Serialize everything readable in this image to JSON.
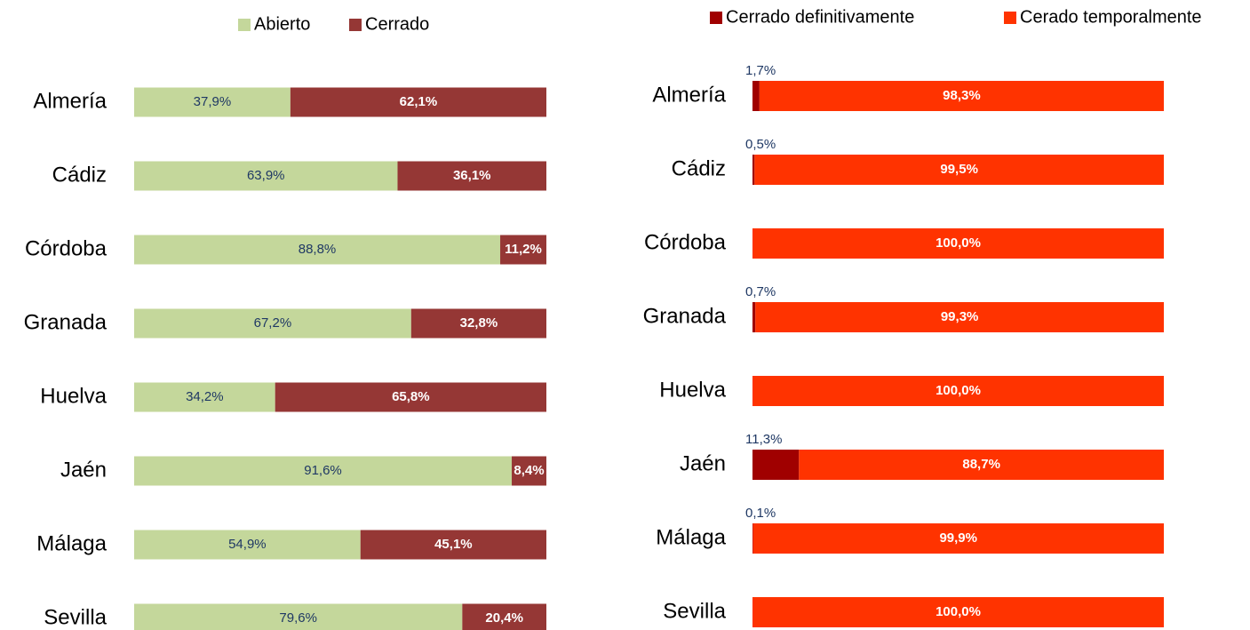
{
  "chart_data": [
    {
      "type": "bar",
      "stacked": true,
      "orientation": "horizontal",
      "legend": "top",
      "categories": [
        "Almería",
        "Cádiz",
        "Córdoba",
        "Granada",
        "Huelva",
        "Jaén",
        "Málaga",
        "Sevilla"
      ],
      "xlim": [
        0,
        100
      ],
      "series": [
        {
          "name": "Abierto",
          "color": "#c4d79b",
          "values": [
            37.9,
            63.9,
            88.8,
            67.2,
            34.2,
            91.6,
            54.9,
            79.6
          ],
          "value_labels": [
            "37,9%",
            "63,9%",
            "88,8%",
            "67,2%",
            "34,2%",
            "91,6%",
            "54,9%",
            "79,6%"
          ]
        },
        {
          "name": "Cerrado",
          "color": "#953735",
          "values": [
            62.1,
            36.1,
            11.2,
            32.8,
            65.8,
            8.4,
            45.1,
            20.4
          ],
          "value_labels": [
            "62,1%",
            "36,1%",
            "11,2%",
            "32,8%",
            "65,8%",
            "8,4%",
            "45,1%",
            "20,4%"
          ]
        }
      ]
    },
    {
      "type": "bar",
      "stacked": true,
      "orientation": "horizontal",
      "legend": "top",
      "categories": [
        "Almería",
        "Cádiz",
        "Córdoba",
        "Granada",
        "Huelva",
        "Jaén",
        "Málaga",
        "Sevilla"
      ],
      "xlim": [
        0,
        100
      ],
      "series": [
        {
          "name": "Cerrado definitivamente",
          "color": "#a00000",
          "values": [
            1.7,
            0.5,
            0,
            0.7,
            0,
            11.3,
            0.1,
            0
          ],
          "value_labels": [
            "1,7%",
            "0,5%",
            null,
            "0,7%",
            null,
            "11,3%",
            "0,1%",
            null
          ]
        },
        {
          "name": "Cerado temporalmente",
          "color": "#ff3300",
          "values": [
            98.3,
            99.5,
            100,
            99.3,
            100,
            88.7,
            99.9,
            100
          ],
          "value_labels": [
            "98,3%",
            "99,5%",
            "100,0%",
            "99,3%",
            "100,0%",
            "88,7%",
            "99,9%",
            "100,0%"
          ]
        }
      ]
    }
  ]
}
